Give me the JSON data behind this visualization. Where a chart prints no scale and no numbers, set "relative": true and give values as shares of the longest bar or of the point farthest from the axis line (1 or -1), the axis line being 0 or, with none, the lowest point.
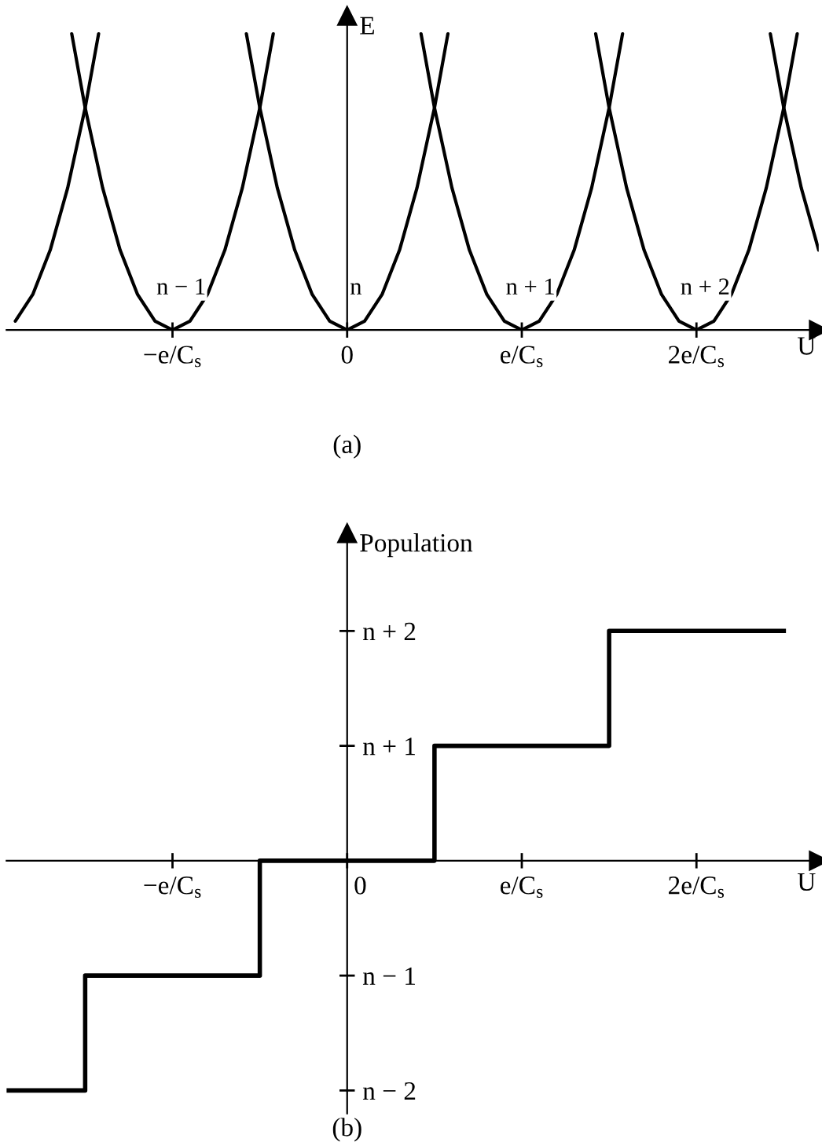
{
  "chart_data": [
    {
      "type": "line",
      "relative": true,
      "xlabel": "U",
      "ylabel": "E",
      "xlim": [
        -1.95,
        2.7
      ],
      "xticks": [
        {
          "value": -1,
          "label": "−e/C$_{s}$"
        },
        0,
        {
          "value": 1,
          "label": "e/C$_{s}$"
        },
        {
          "value": 2,
          "label": "2e/C$_{s}$"
        }
      ],
      "series": [
        {
          "color": "#000000",
          "x": [
            -1.9,
            -1.8,
            -1.7,
            -1.6,
            -1.5,
            -1.423
          ],
          "values": [
            0.03,
            0.12,
            0.27,
            0.48,
            0.75,
            1
          ]
        },
        {
          "name": "n − 1",
          "color": "#000000",
          "x": [
            -1.577,
            -1.5,
            -1.4,
            -1.3,
            -1.2,
            -1.1,
            -1,
            -0.9,
            -0.8,
            -0.7,
            -0.6,
            -0.5,
            -0.423
          ],
          "values": [
            1,
            0.75,
            0.48,
            0.27,
            0.12,
            0.03,
            0,
            0.03,
            0.12,
            0.27,
            0.48,
            0.75,
            1
          ]
        },
        {
          "name": "n",
          "color": "#000000",
          "x": [
            -0.577,
            -0.5,
            -0.4,
            -0.3,
            -0.2,
            -0.1,
            0,
            0.1,
            0.2,
            0.3,
            0.4,
            0.5,
            0.577
          ],
          "values": [
            1,
            0.75,
            0.48,
            0.27,
            0.12,
            0.03,
            0,
            0.03,
            0.12,
            0.27,
            0.48,
            0.75,
            1
          ]
        },
        {
          "name": "n + 1",
          "color": "#000000",
          "x": [
            0.423,
            0.5,
            0.6,
            0.7,
            0.8,
            0.9,
            1,
            1.1,
            1.2,
            1.3,
            1.4,
            1.5,
            1.577
          ],
          "values": [
            1,
            0.75,
            0.48,
            0.27,
            0.12,
            0.03,
            0,
            0.03,
            0.12,
            0.27,
            0.48,
            0.75,
            1
          ]
        },
        {
          "name": "n + 2",
          "color": "#000000",
          "x": [
            1.423,
            1.5,
            1.6,
            1.7,
            1.8,
            1.9,
            2,
            2.1,
            2.2,
            2.3,
            2.4,
            2.5,
            2.577
          ],
          "values": [
            1,
            0.75,
            0.48,
            0.27,
            0.12,
            0.03,
            0,
            0.03,
            0.12,
            0.27,
            0.48,
            0.75,
            1
          ]
        },
        {
          "color": "#000000",
          "x": [
            2.423,
            2.5,
            2.6,
            2.7
          ],
          "values": [
            1,
            0.75,
            0.48,
            0.27
          ]
        }
      ],
      "annotations": [
        "(a)"
      ]
    },
    {
      "type": "step",
      "xlabel": "U",
      "ylabel": "Population",
      "xlim": [
        -1.95,
        2.7
      ],
      "ylim": [
        -2.2,
        2.85
      ],
      "xticks": [
        {
          "value": -1,
          "label": "−e/C$_{s}$"
        },
        0,
        {
          "value": 1,
          "label": "e/C$_{s}$"
        },
        {
          "value": 2,
          "label": "2e/C$_{s}$"
        }
      ],
      "yticks": [
        {
          "value": -2,
          "label": "n − 2"
        },
        {
          "value": -1,
          "label": "n − 1"
        },
        {
          "value": 1,
          "label": "n + 1"
        },
        {
          "value": 2,
          "label": "n + 2"
        }
      ],
      "series": [
        {
          "color": "#000000",
          "x": [
            -1.95,
            -1.5,
            -0.5,
            0.5,
            1.5,
            2.5
          ],
          "values": [
            -2,
            -1,
            0,
            1,
            2,
            2
          ]
        }
      ],
      "annotations": [
        "(b)"
      ]
    }
  ]
}
